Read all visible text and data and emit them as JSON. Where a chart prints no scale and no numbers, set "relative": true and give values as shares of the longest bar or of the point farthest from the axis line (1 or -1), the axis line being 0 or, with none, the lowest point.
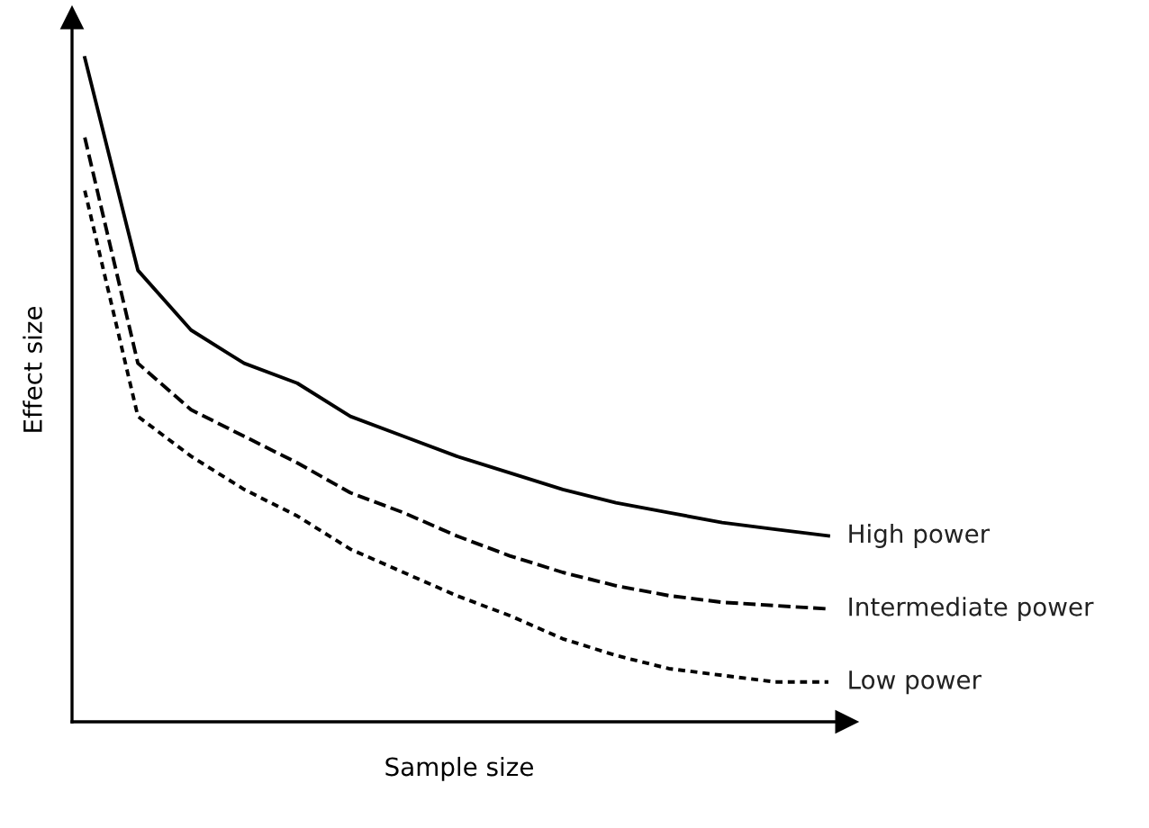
{
  "chart_data": {
    "type": "line",
    "relative": true,
    "xlabel": "Sample size",
    "ylabel": "Effect size",
    "legend": false,
    "tick_labels": false,
    "categories": [
      null,
      null,
      null,
      null,
      null,
      null,
      null,
      null,
      null,
      null,
      null,
      null,
      null,
      null,
      null
    ],
    "series": [
      {
        "name": "High power",
        "color": "#000000",
        "line_style": "solid",
        "values": [
          1.0,
          0.68,
          0.59,
          0.54,
          0.51,
          0.46,
          0.43,
          0.4,
          0.375,
          0.35,
          0.33,
          0.315,
          0.3,
          0.29,
          0.28
        ]
      },
      {
        "name": "Intermediate power",
        "color": "#000000",
        "line_style": "dashed",
        "values": [
          0.88,
          0.54,
          0.47,
          0.43,
          0.39,
          0.345,
          0.315,
          0.28,
          0.25,
          0.225,
          0.205,
          0.19,
          0.18,
          0.175,
          0.17
        ]
      },
      {
        "name": "Low power",
        "color": "#000000",
        "line_style": "dotted",
        "values": [
          0.8,
          0.46,
          0.4,
          0.35,
          0.31,
          0.26,
          0.225,
          0.19,
          0.16,
          0.125,
          0.1,
          0.08,
          0.07,
          0.06,
          0.06
        ]
      }
    ]
  }
}
